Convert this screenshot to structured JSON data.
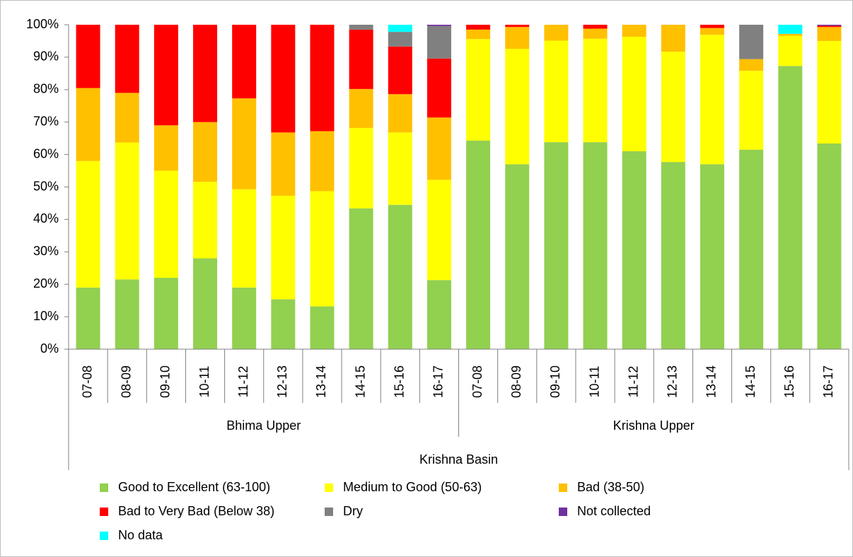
{
  "chart_data": {
    "type": "stacked_bar",
    "categories": [
      "07-08",
      "08-09",
      "09-10",
      "10-11",
      "11-12",
      "12-13",
      "13-14",
      "14-15",
      "15-16",
      "16-17",
      "07-08",
      "08-09",
      "09-10",
      "10-11",
      "11-12",
      "12-13",
      "13-14",
      "14-15",
      "15-16",
      "16-17"
    ],
    "group_labels": [
      "Bhima Upper",
      "Krishna Upper"
    ],
    "outer_label": "Krishna Basin",
    "series": [
      {
        "name": "Good to Excellent (63-100)",
        "color": "#92d050",
        "values": [
          19,
          21.5,
          22,
          28,
          19,
          15.4,
          13.2,
          43.4,
          44.5,
          21.3,
          64.3,
          57,
          63.8,
          63.8,
          61,
          57.7,
          57,
          61.5,
          87.3,
          63.4
        ]
      },
      {
        "name": "Medium to Good (50-63)",
        "color": "#ffff00",
        "values": [
          39,
          42.2,
          33,
          23.6,
          30.3,
          31.9,
          35.5,
          24.8,
          22.3,
          30.9,
          31.3,
          35.6,
          31.3,
          31.9,
          35.3,
          34,
          39.9,
          24.3,
          9.3,
          31.6
        ]
      },
      {
        "name": "Bad (38-50)",
        "color": "#ffc000",
        "values": [
          22.5,
          15.3,
          14,
          18.4,
          28,
          19.5,
          18.5,
          12,
          11.8,
          19.2,
          2.9,
          6.7,
          4.9,
          3.1,
          3.7,
          8.3,
          2.1,
          3.6,
          0.6,
          4.3
        ]
      },
      {
        "name": "Bad to Very Bad (Below 38)",
        "color": "#ff0000",
        "values": [
          19.5,
          21,
          31,
          30,
          22.7,
          33.2,
          32.8,
          18.3,
          14.7,
          18.2,
          1.5,
          0.7,
          0,
          1.2,
          0,
          0,
          1,
          0,
          0,
          0.4
        ]
      },
      {
        "name": "Dry",
        "color": "#808080",
        "values": [
          0,
          0,
          0,
          0,
          0,
          0,
          0,
          1.5,
          4.5,
          10,
          0,
          0,
          0,
          0,
          0,
          0,
          0,
          10.6,
          0,
          0
        ]
      },
      {
        "name": "Not collected",
        "color": "#7030a0",
        "values": [
          0,
          0,
          0,
          0,
          0,
          0,
          0,
          0,
          0,
          0.4,
          0,
          0,
          0,
          0,
          0,
          0,
          0,
          0,
          0,
          0.3
        ]
      },
      {
        "name": "No data",
        "color": "#00ffff",
        "values": [
          0,
          0,
          0,
          0,
          0,
          0,
          0,
          0,
          2.2,
          0,
          0,
          0,
          0,
          0,
          0,
          0,
          0,
          0,
          2.8,
          0
        ]
      }
    ],
    "ylim": [
      0,
      100
    ],
    "yticks": [
      {
        "value": 0,
        "label": "0%"
      },
      {
        "value": 10,
        "label": "10%"
      },
      {
        "value": 20,
        "label": "20%"
      },
      {
        "value": 30,
        "label": "30%"
      },
      {
        "value": 40,
        "label": "40%"
      },
      {
        "value": 50,
        "label": "50%"
      },
      {
        "value": 60,
        "label": "60%"
      },
      {
        "value": 70,
        "label": "70%"
      },
      {
        "value": 80,
        "label": "80%"
      },
      {
        "value": 90,
        "label": "90%"
      },
      {
        "value": 100,
        "label": "100%"
      }
    ]
  }
}
